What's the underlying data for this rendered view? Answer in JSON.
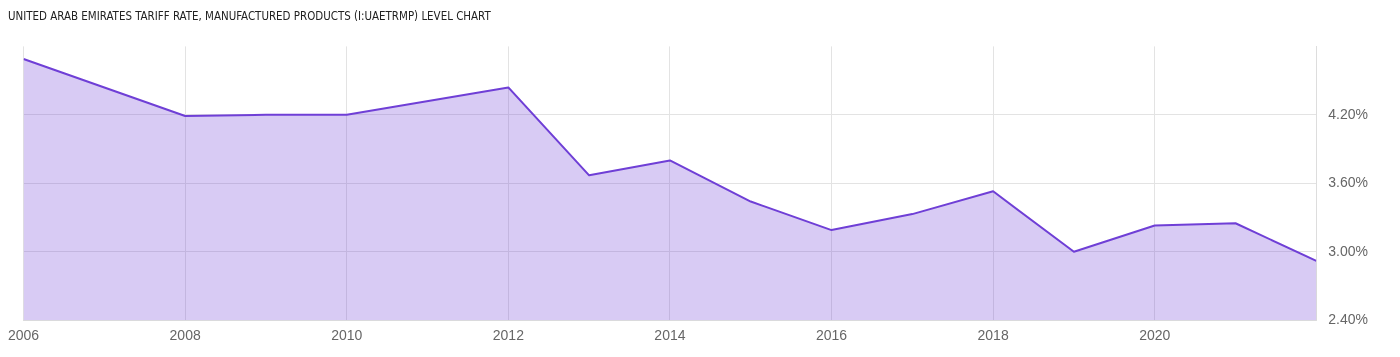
{
  "chart_data": {
    "type": "area",
    "title": "UNITED ARAB EMIRATES TARIFF RATE, MANUFACTURED PRODUCTS (I:UAETRMP) LEVEL CHART",
    "x": [
      2006,
      2008,
      2009,
      2010,
      2012,
      2013,
      2014,
      2015,
      2016,
      2017,
      2018,
      2019,
      2020,
      2021,
      2022
    ],
    "series": [
      {
        "color": "#6f3fd6",
        "values": [
          4.69,
          4.19,
          4.2,
          4.2,
          4.44,
          3.67,
          3.8,
          3.44,
          3.19,
          3.33,
          3.53,
          3.0,
          3.23,
          3.25,
          2.92
        ]
      }
    ],
    "xlim": [
      2006,
      2022
    ],
    "xticks": [
      2006,
      2008,
      2010,
      2012,
      2014,
      2016,
      2018,
      2020
    ],
    "ylim": [
      2.4,
      4.8
    ],
    "yticks": [
      {
        "value": 2.4,
        "label": "2.40%"
      },
      {
        "value": 3.0,
        "label": "3.00%"
      },
      {
        "value": 3.6,
        "label": "3.60%"
      },
      {
        "value": 4.2,
        "label": "4.20%"
      }
    ],
    "grid": true,
    "legend": false,
    "marker": "none",
    "line_style": "solid"
  }
}
